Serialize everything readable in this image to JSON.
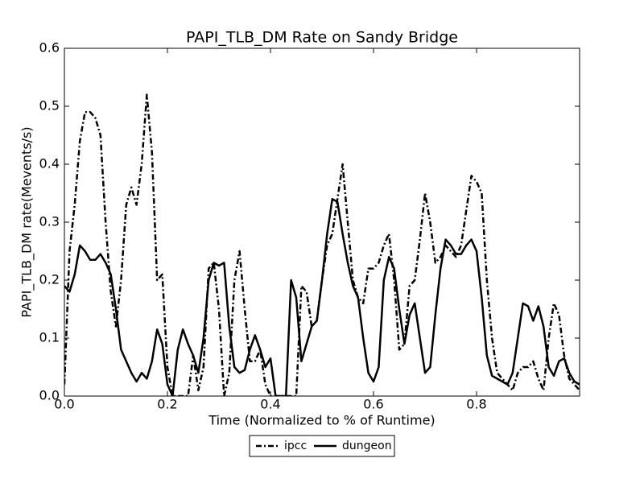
{
  "chart_data": {
    "type": "line",
    "title": "PAPI_TLB_DM Rate on Sandy Bridge",
    "xlabel": "Time (Normalized to % of Runtime)",
    "ylabel": "PAPI_TLB_DM rate(Mevents/s)",
    "x": [
      0,
      0.01,
      0.02,
      0.03,
      0.04,
      0.05,
      0.06,
      0.07,
      0.08,
      0.09,
      0.1,
      0.11,
      0.12,
      0.13,
      0.14,
      0.15,
      0.16,
      0.17,
      0.18,
      0.19,
      0.2,
      0.21,
      0.22,
      0.23,
      0.24,
      0.25,
      0.26,
      0.27,
      0.28,
      0.29,
      0.3,
      0.31,
      0.32,
      0.33,
      0.34,
      0.35,
      0.36,
      0.37,
      0.38,
      0.39,
      0.4,
      0.41,
      0.42,
      0.43,
      0.44,
      0.45,
      0.46,
      0.47,
      0.48,
      0.49,
      0.5,
      0.51,
      0.52,
      0.53,
      0.54,
      0.55,
      0.56,
      0.57,
      0.58,
      0.59,
      0.6,
      0.61,
      0.62,
      0.63,
      0.64,
      0.65,
      0.66,
      0.67,
      0.68,
      0.69,
      0.7,
      0.71,
      0.72,
      0.73,
      0.74,
      0.75,
      0.76,
      0.77,
      0.78,
      0.79,
      0.8,
      0.81,
      0.82,
      0.83,
      0.84,
      0.85,
      0.86,
      0.87,
      0.88,
      0.89,
      0.9,
      0.91,
      0.92,
      0.93,
      0.94,
      0.95,
      0.96,
      0.97,
      0.98,
      0.99,
      1
    ],
    "series": [
      {
        "name": "ipcc",
        "color": "#000000",
        "linestyle": "dashdot",
        "values": [
          0.02,
          0.25,
          0.33,
          0.44,
          0.49,
          0.49,
          0.48,
          0.45,
          0.3,
          0.18,
          0.12,
          0.2,
          0.33,
          0.36,
          0.33,
          0.4,
          0.52,
          0.42,
          0.2,
          0.21,
          0.05,
          0,
          0,
          0,
          0,
          0.07,
          0.01,
          0.05,
          0.22,
          0.23,
          0.15,
          0,
          0.04,
          0.2,
          0.25,
          0.15,
          0.06,
          0.06,
          0.08,
          0.02,
          0,
          0,
          0,
          0,
          0,
          0,
          0.19,
          0.18,
          0.12,
          0.13,
          0.2,
          0.26,
          0.28,
          0.34,
          0.4,
          0.3,
          0.2,
          0.17,
          0.16,
          0.22,
          0.22,
          0.23,
          0.26,
          0.28,
          0.2,
          0.08,
          0.09,
          0.19,
          0.2,
          0.27,
          0.35,
          0.3,
          0.23,
          0.24,
          0.26,
          0.25,
          0.24,
          0.26,
          0.32,
          0.38,
          0.37,
          0.35,
          0.2,
          0.1,
          0.04,
          0.03,
          0.02,
          0.01,
          0.04,
          0.05,
          0.05,
          0.06,
          0.03,
          0.01,
          0.1,
          0.16,
          0.14,
          0.07,
          0.03,
          0.02,
          0.01
        ]
      },
      {
        "name": "dungeon",
        "color": "#000000",
        "linestyle": "solid",
        "values": [
          0.19,
          0.18,
          0.21,
          0.26,
          0.25,
          0.235,
          0.235,
          0.245,
          0.23,
          0.21,
          0.15,
          0.08,
          0.06,
          0.04,
          0.025,
          0.04,
          0.03,
          0.06,
          0.115,
          0.09,
          0.02,
          0,
          0.08,
          0.115,
          0.09,
          0.07,
          0.04,
          0.1,
          0.2,
          0.23,
          0.225,
          0.23,
          0.12,
          0.05,
          0.04,
          0.045,
          0.08,
          0.105,
          0.08,
          0.05,
          0.065,
          0,
          0,
          0,
          0.2,
          0.17,
          0.06,
          0.09,
          0.12,
          0.13,
          0.2,
          0.28,
          0.34,
          0.335,
          0.28,
          0.23,
          0.19,
          0.17,
          0.1,
          0.04,
          0.025,
          0.05,
          0.2,
          0.24,
          0.22,
          0.15,
          0.09,
          0.14,
          0.16,
          0.1,
          0.04,
          0.05,
          0.14,
          0.22,
          0.27,
          0.26,
          0.245,
          0.245,
          0.26,
          0.27,
          0.25,
          0.17,
          0.07,
          0.035,
          0.03,
          0.025,
          0.02,
          0.04,
          0.1,
          0.16,
          0.155,
          0.13,
          0.155,
          0.12,
          0.05,
          0.035,
          0.06,
          0.065,
          0.04,
          0.025,
          0.02
        ]
      }
    ],
    "xlim": [
      0,
      1
    ],
    "xticks": [
      {
        "value": 0,
        "label": "0.0"
      },
      0.2,
      0.4,
      0.6,
      0.8
    ],
    "ylim": [
      0,
      0.6
    ],
    "yticks": [
      {
        "value": 0,
        "label": "0.0"
      },
      0.1,
      0.2,
      0.3,
      0.4,
      0.5,
      0.6
    ],
    "legend": "bottom"
  }
}
